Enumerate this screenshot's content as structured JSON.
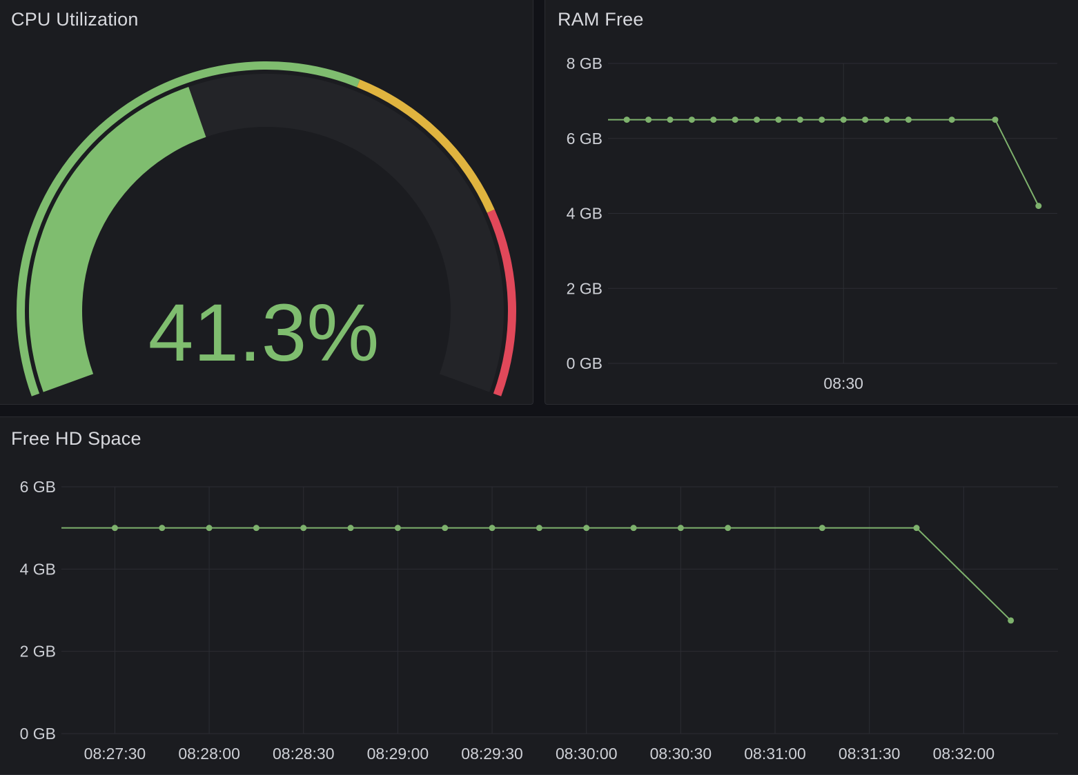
{
  "colors": {
    "background": "#111217",
    "panel": "#1b1c20",
    "series_green": "#7eb26d",
    "gauge_green": "#7fbd6f",
    "gauge_yellow": "#e0b43f",
    "gauge_red": "#e1485a",
    "gauge_track": "#232428",
    "grid": "#2c2d33",
    "text": "#ced0d6"
  },
  "panels": {
    "cpu": {
      "title": "CPU Utilization",
      "value_text": "41.3%",
      "value": 41.3,
      "unit": "%",
      "min": 0,
      "max": 100,
      "thresholds": [
        {
          "from": 0,
          "to": 60,
          "color": "green"
        },
        {
          "from": 60,
          "to": 80,
          "color": "yellow"
        },
        {
          "from": 80,
          "to": 100,
          "color": "red"
        }
      ]
    },
    "ram": {
      "title": "RAM Free"
    },
    "hd": {
      "title": "Free HD Space"
    }
  },
  "chart_data": [
    {
      "panel": "ram",
      "type": "line",
      "title": "RAM Free",
      "y_unit": "GB",
      "ylim": [
        0,
        8
      ],
      "y_ticks": [
        0,
        2,
        4,
        6,
        8
      ],
      "y_tick_labels": [
        "0 GB",
        "2 GB",
        "4 GB",
        "6 GB",
        "8 GB"
      ],
      "xlim": [
        "08:27:17",
        "08:32:28"
      ],
      "x_ticks": [
        "08:30:00"
      ],
      "x_tick_labels": [
        "08:30"
      ],
      "grid": true,
      "series": [
        {
          "x": [
            "08:27:17",
            "08:27:30",
            "08:27:45",
            "08:28:00",
            "08:28:15",
            "08:28:30",
            "08:28:45",
            "08:29:00",
            "08:29:15",
            "08:29:30",
            "08:29:45",
            "08:30:00",
            "08:30:15",
            "08:30:30",
            "08:30:45",
            "08:31:15",
            "08:31:45",
            "08:32:15"
          ],
          "y": [
            6.5,
            6.5,
            6.5,
            6.5,
            6.5,
            6.5,
            6.5,
            6.5,
            6.5,
            6.5,
            6.5,
            6.5,
            6.5,
            6.5,
            6.5,
            6.5,
            6.5,
            4.2
          ],
          "points": [
            false,
            true,
            true,
            true,
            true,
            true,
            true,
            true,
            true,
            true,
            true,
            true,
            true,
            true,
            true,
            true,
            true,
            true
          ]
        }
      ]
    },
    {
      "panel": "hd",
      "type": "line",
      "title": "Free HD Space",
      "y_unit": "GB",
      "ylim": [
        0,
        6
      ],
      "y_ticks": [
        0,
        2,
        4,
        6
      ],
      "y_tick_labels": [
        "0 GB",
        "2 GB",
        "4 GB",
        "6 GB"
      ],
      "xlim": [
        "08:27:13",
        "08:32:30"
      ],
      "x_ticks": [
        "08:27:30",
        "08:28:00",
        "08:28:30",
        "08:29:00",
        "08:29:30",
        "08:30:00",
        "08:30:30",
        "08:31:00",
        "08:31:30",
        "08:32:00"
      ],
      "x_tick_labels": [
        "08:27:30",
        "08:28:00",
        "08:28:30",
        "08:29:00",
        "08:29:30",
        "08:30:00",
        "08:30:30",
        "08:31:00",
        "08:31:30",
        "08:32:00"
      ],
      "grid": true,
      "series": [
        {
          "x": [
            "08:27:13",
            "08:27:30",
            "08:27:45",
            "08:28:00",
            "08:28:15",
            "08:28:30",
            "08:28:45",
            "08:29:00",
            "08:29:15",
            "08:29:30",
            "08:29:45",
            "08:30:00",
            "08:30:15",
            "08:30:30",
            "08:30:45",
            "08:31:15",
            "08:31:45",
            "08:32:15"
          ],
          "y": [
            5,
            5,
            5,
            5,
            5,
            5,
            5,
            5,
            5,
            5,
            5,
            5,
            5,
            5,
            5,
            5,
            5,
            2.75
          ],
          "points": [
            false,
            true,
            true,
            true,
            true,
            true,
            true,
            true,
            true,
            true,
            true,
            true,
            true,
            true,
            true,
            true,
            true,
            true
          ]
        }
      ]
    }
  ]
}
